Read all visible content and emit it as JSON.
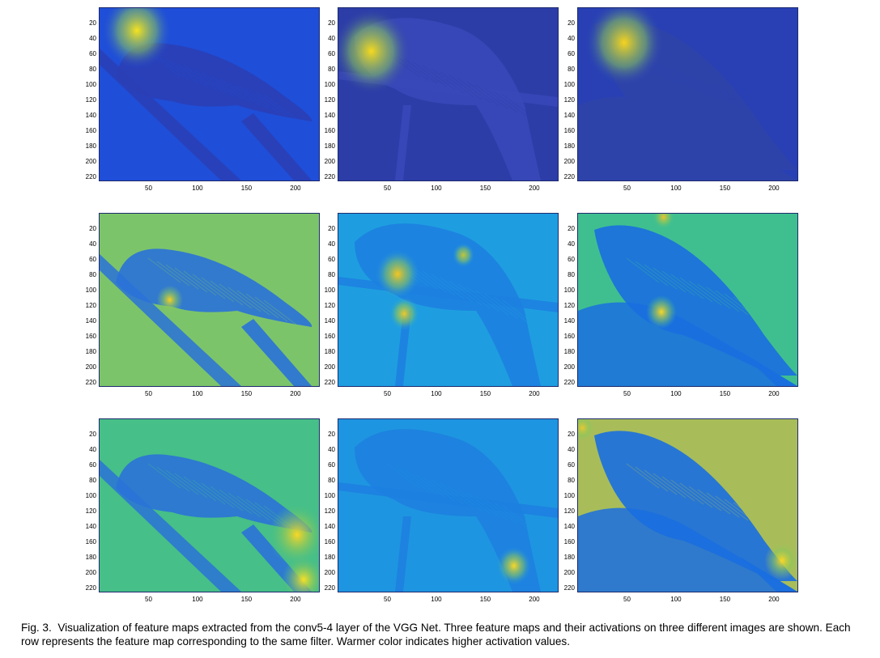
{
  "figure": {
    "y_ticks": [
      "20",
      "40",
      "60",
      "80",
      "100",
      "120",
      "140",
      "160",
      "180",
      "200",
      "220"
    ],
    "x_ticks": [
      "50",
      "100",
      "150",
      "200"
    ],
    "colormap": [
      "#3e26a8",
      "#1f5fe0",
      "#1996d8",
      "#2cb7b0",
      "#6ecb72",
      "#c6c43a",
      "#fbd625",
      "#f9fb14"
    ],
    "panels": [
      {
        "row": 1,
        "col": 1,
        "bg": "#1f4ed8",
        "bird": "#2a3fb6",
        "hot": [
          {
            "cx": 0.17,
            "cy": 0.13,
            "r": 0.16,
            "c": "#f7e21e"
          }
        ]
      },
      {
        "row": 1,
        "col": 2,
        "bg": "#2c3da8",
        "bird": "#3848b8",
        "hot": [
          {
            "cx": 0.15,
            "cy": 0.25,
            "r": 0.18,
            "c": "#f7d91e"
          }
        ]
      },
      {
        "row": 1,
        "col": 3,
        "bg": "#2840b4",
        "bird": "#2f44a8",
        "hot": [
          {
            "cx": 0.21,
            "cy": 0.2,
            "r": 0.18,
            "c": "#f9d21e"
          }
        ]
      },
      {
        "row": 2,
        "col": 1,
        "bg": "#7cc46a",
        "bird": "#2a72d8",
        "hot": [
          {
            "cx": 0.32,
            "cy": 0.5,
            "r": 0.06,
            "c": "#f9d020"
          }
        ]
      },
      {
        "row": 2,
        "col": 2,
        "bg": "#1e9ee0",
        "bird": "#1d7fe0",
        "hot": [
          {
            "cx": 0.27,
            "cy": 0.35,
            "r": 0.1,
            "c": "#f7c51e"
          },
          {
            "cx": 0.3,
            "cy": 0.58,
            "r": 0.07,
            "c": "#f0c828"
          },
          {
            "cx": 0.57,
            "cy": 0.24,
            "r": 0.05,
            "c": "#c6c43a"
          }
        ]
      },
      {
        "row": 2,
        "col": 3,
        "bg": "#3fbf90",
        "bird": "#1a6ee0",
        "hot": [
          {
            "cx": 0.38,
            "cy": 0.57,
            "r": 0.07,
            "c": "#fbd625"
          },
          {
            "cx": 0.39,
            "cy": 0.02,
            "r": 0.05,
            "c": "#f3c02a"
          }
        ]
      },
      {
        "row": 3,
        "col": 1,
        "bg": "#46bf88",
        "bird": "#2a72d8",
        "hot": [
          {
            "cx": 0.9,
            "cy": 0.67,
            "r": 0.13,
            "c": "#fbd625"
          },
          {
            "cx": 0.93,
            "cy": 0.93,
            "r": 0.1,
            "c": "#f9e024"
          }
        ]
      },
      {
        "row": 3,
        "col": 2,
        "bg": "#1e95e0",
        "bird": "#1d7fe0",
        "hot": [
          {
            "cx": 0.8,
            "cy": 0.85,
            "r": 0.08,
            "c": "#fbd625"
          }
        ]
      },
      {
        "row": 3,
        "col": 3,
        "bg": "#a8bd5a",
        "bird": "#1a6ee0",
        "hot": [
          {
            "cx": 0.93,
            "cy": 0.82,
            "r": 0.08,
            "c": "#fbd625"
          },
          {
            "cx": 0.02,
            "cy": 0.05,
            "r": 0.06,
            "c": "#e8c830"
          }
        ]
      }
    ]
  },
  "caption": {
    "label": "Fig. 3.",
    "text": "Visualization of feature maps extracted from the conv5-4 layer of the VGG Net. Three feature maps and their activations on three different images are shown. Each row represents the feature map corresponding to the same filter. Warmer color indicates higher activation values."
  }
}
